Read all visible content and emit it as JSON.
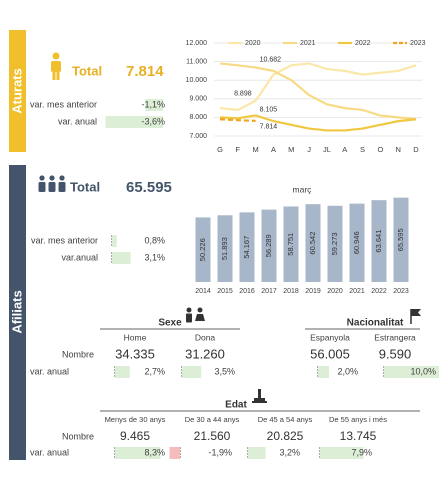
{
  "aturats": {
    "title": "Aturats",
    "total_label": "Total",
    "total": "7.814",
    "rows": [
      {
        "label": "var. mes anterior",
        "change": {
          "value": -1.1,
          "label": "-1,1%"
        }
      },
      {
        "label": "var. anual",
        "change": {
          "value": -3.6,
          "label": "-3,6%"
        }
      }
    ],
    "bar_color": "#dcefd6"
  },
  "afiliats": {
    "title": "Afiliats",
    "total_label": "Total",
    "total": "65.595",
    "rows": [
      {
        "label": "var. mes anterior",
        "change": {
          "value": 0.8,
          "label": "0,8%"
        }
      },
      {
        "label": "var.anual",
        "change": {
          "value": 3.1,
          "label": "3,1%"
        }
      }
    ],
    "bar_color": "#dcefd6",
    "negative_color": "#f6bcbc",
    "breakdown_rows": [
      [
        "Nombre",
        "var. anual"
      ],
      [
        "Nombre",
        "var. anual"
      ]
    ],
    "groups": [
      {
        "title": "Sexe",
        "items": [
          {
            "label": "Home",
            "count": "34.335",
            "change": {
              "value": 2.7,
              "label": "2,7%"
            }
          },
          {
            "label": "Dona",
            "count": "31.260",
            "change": {
              "value": 3.5,
              "label": "3,5%"
            }
          }
        ]
      },
      {
        "title": "Nacionalitat",
        "items": [
          {
            "label": "Espanyola",
            "count": "56.005",
            "change": {
              "value": 2.0,
              "label": "2,0%"
            }
          },
          {
            "label": "Estrangera",
            "count": "9.590",
            "change": {
              "value": 10.0,
              "label": "10,0%"
            }
          }
        ]
      },
      {
        "title": "Edat",
        "items": [
          {
            "label": "Menys de 30 anys",
            "count": "9.465",
            "change": {
              "value": 8.3,
              "label": "8,3%"
            }
          },
          {
            "label": "De 30 a 44 anys",
            "count": "21.560",
            "change": {
              "value": -1.9,
              "label": "-1,9%"
            }
          },
          {
            "label": "De 45 a 54 anys",
            "count": "20.825",
            "change": {
              "value": 3.2,
              "label": "3,2%"
            }
          },
          {
            "label": "De 55 anys i més",
            "count": "13.745",
            "change": {
              "value": 7.9,
              "label": "7,9%"
            }
          }
        ]
      }
    ]
  },
  "chart_data": [
    {
      "type": "line",
      "categories": [
        "G",
        "F",
        "M",
        "A",
        "M",
        "J",
        "JL",
        "A",
        "S",
        "O",
        "N",
        "D"
      ],
      "series": [
        {
          "name": "2020",
          "color": "#fbe7a8",
          "values": [
            8500,
            8400,
            8898,
            10300,
            10800,
            10900,
            10600,
            10500,
            10300,
            10400,
            10500,
            10800
          ],
          "value_labels": [
            null,
            null,
            "8.898",
            null,
            null,
            null,
            null,
            null,
            null,
            null,
            null,
            null
          ]
        },
        {
          "name": "2021",
          "color": "#f7da84",
          "values": [
            10900,
            10800,
            10682,
            10500,
            10000,
            9200,
            8700,
            8500,
            8400,
            8100,
            8000,
            7900
          ],
          "value_labels": [
            null,
            null,
            "10.682",
            null,
            null,
            null,
            null,
            null,
            null,
            null,
            null,
            null
          ]
        },
        {
          "name": "2022",
          "color": "#f1c640",
          "values": [
            8000,
            7950,
            8105,
            7800,
            7600,
            7400,
            7300,
            7300,
            7400,
            7600,
            7800,
            7900
          ],
          "value_labels": [
            null,
            null,
            "8.105",
            null,
            null,
            null,
            null,
            null,
            null,
            null,
            null,
            null
          ]
        },
        {
          "name": "2023",
          "color": "#f3a41a",
          "dashed": true,
          "values": [
            7900,
            7850,
            7814,
            null,
            null,
            null,
            null,
            null,
            null,
            null,
            null,
            null
          ],
          "value_labels": [
            null,
            null,
            "7.814",
            null,
            null,
            null,
            null,
            null,
            null,
            null,
            null,
            null
          ]
        }
      ],
      "ylim": [
        7000,
        12000
      ],
      "yticks": [
        {
          "value": 7000,
          "label": "7.000"
        },
        {
          "value": 8000,
          "label": "8.000"
        },
        {
          "value": 9000,
          "label": "9.000"
        },
        {
          "value": 10000,
          "label": "10.000"
        },
        {
          "value": 11000,
          "label": "11.000"
        },
        {
          "value": 12000,
          "label": "12.000"
        }
      ],
      "grid": true,
      "legend": "top"
    },
    {
      "type": "bar",
      "title": "març",
      "categories": [
        "2014",
        "2015",
        "2016",
        "2017",
        "2018",
        "2019",
        "2020",
        "2021",
        "2022",
        "2023"
      ],
      "values": [
        50226,
        51893,
        54167,
        56289,
        58751,
        60542,
        59273,
        60946,
        63641,
        65595
      ],
      "value_labels": [
        "50.226",
        "51.893",
        "54.167",
        "56.289",
        "58.751",
        "60.542",
        "59.273",
        "60.946",
        "63.641",
        "65.595"
      ],
      "color": "#a8b6ca",
      "ylim": [
        0,
        70000
      ]
    }
  ]
}
